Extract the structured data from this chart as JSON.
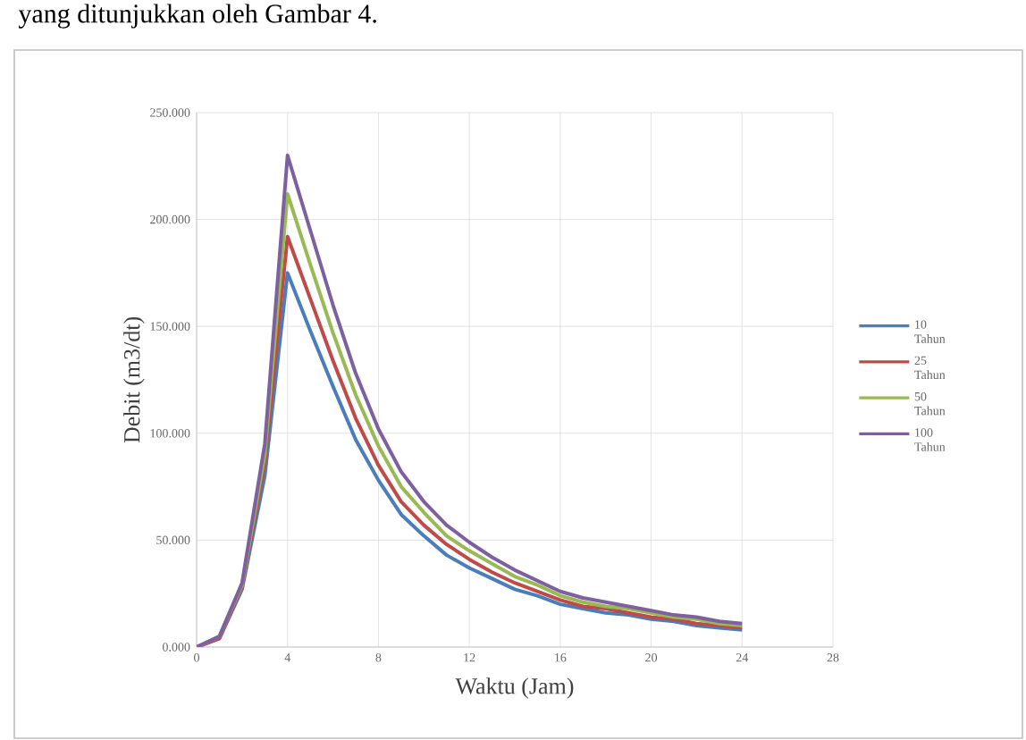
{
  "chart_data": {
    "type": "line",
    "xlabel": "Waktu (Jam)",
    "ylabel": "Debit (m3/dt)",
    "annotations": [
      "yang ditunjukkan oleh Gambar 4."
    ],
    "x": [
      0,
      1,
      2,
      3,
      4,
      5,
      6,
      7,
      8,
      9,
      10,
      11,
      12,
      13,
      14,
      15,
      16,
      17,
      18,
      19,
      20,
      21,
      22,
      23,
      24
    ],
    "series": [
      {
        "name": "10 Tahun",
        "color": "#4a7ebb",
        "values": [
          0,
          4,
          27,
          80,
          175,
          148,
          122,
          97,
          78,
          62,
          52,
          43,
          37,
          32,
          27,
          24,
          20,
          18,
          16,
          15,
          13,
          12,
          10,
          9,
          8
        ]
      },
      {
        "name": "25 Tahun",
        "color": "#be4b48",
        "values": [
          0,
          4,
          28,
          86,
          192,
          163,
          134,
          107,
          85,
          68,
          57,
          48,
          41,
          35,
          30,
          26,
          22,
          19,
          18,
          16,
          14,
          13,
          11,
          10,
          9
        ]
      },
      {
        "name": "50 Tahun",
        "color": "#98b954",
        "values": [
          0,
          5,
          29,
          90,
          212,
          179,
          147,
          118,
          94,
          75,
          63,
          52,
          45,
          39,
          33,
          29,
          24,
          21,
          19,
          18,
          16,
          14,
          13,
          11,
          10
        ]
      },
      {
        "name": "100 Tahun",
        "color": "#7d60a0",
        "values": [
          0,
          5,
          30,
          95,
          230,
          195,
          160,
          128,
          102,
          82,
          68,
          57,
          49,
          42,
          36,
          31,
          26,
          23,
          21,
          19,
          17,
          15,
          14,
          12,
          11
        ]
      }
    ],
    "xlim": [
      0,
      28
    ],
    "xticks": [
      0,
      4,
      8,
      12,
      16,
      20,
      24,
      28
    ],
    "ylim": [
      0,
      250
    ],
    "yticks": [
      {
        "value": 0,
        "label": "0.000"
      },
      {
        "value": 50,
        "label": "50.000"
      },
      {
        "value": 100,
        "label": "100.000"
      },
      {
        "value": 150,
        "label": "150.000"
      },
      {
        "value": 200,
        "label": "200.000"
      },
      {
        "value": 250,
        "label": "250.000"
      }
    ],
    "grid": true,
    "legend": "right",
    "marker": "none",
    "line_style": "solid"
  }
}
